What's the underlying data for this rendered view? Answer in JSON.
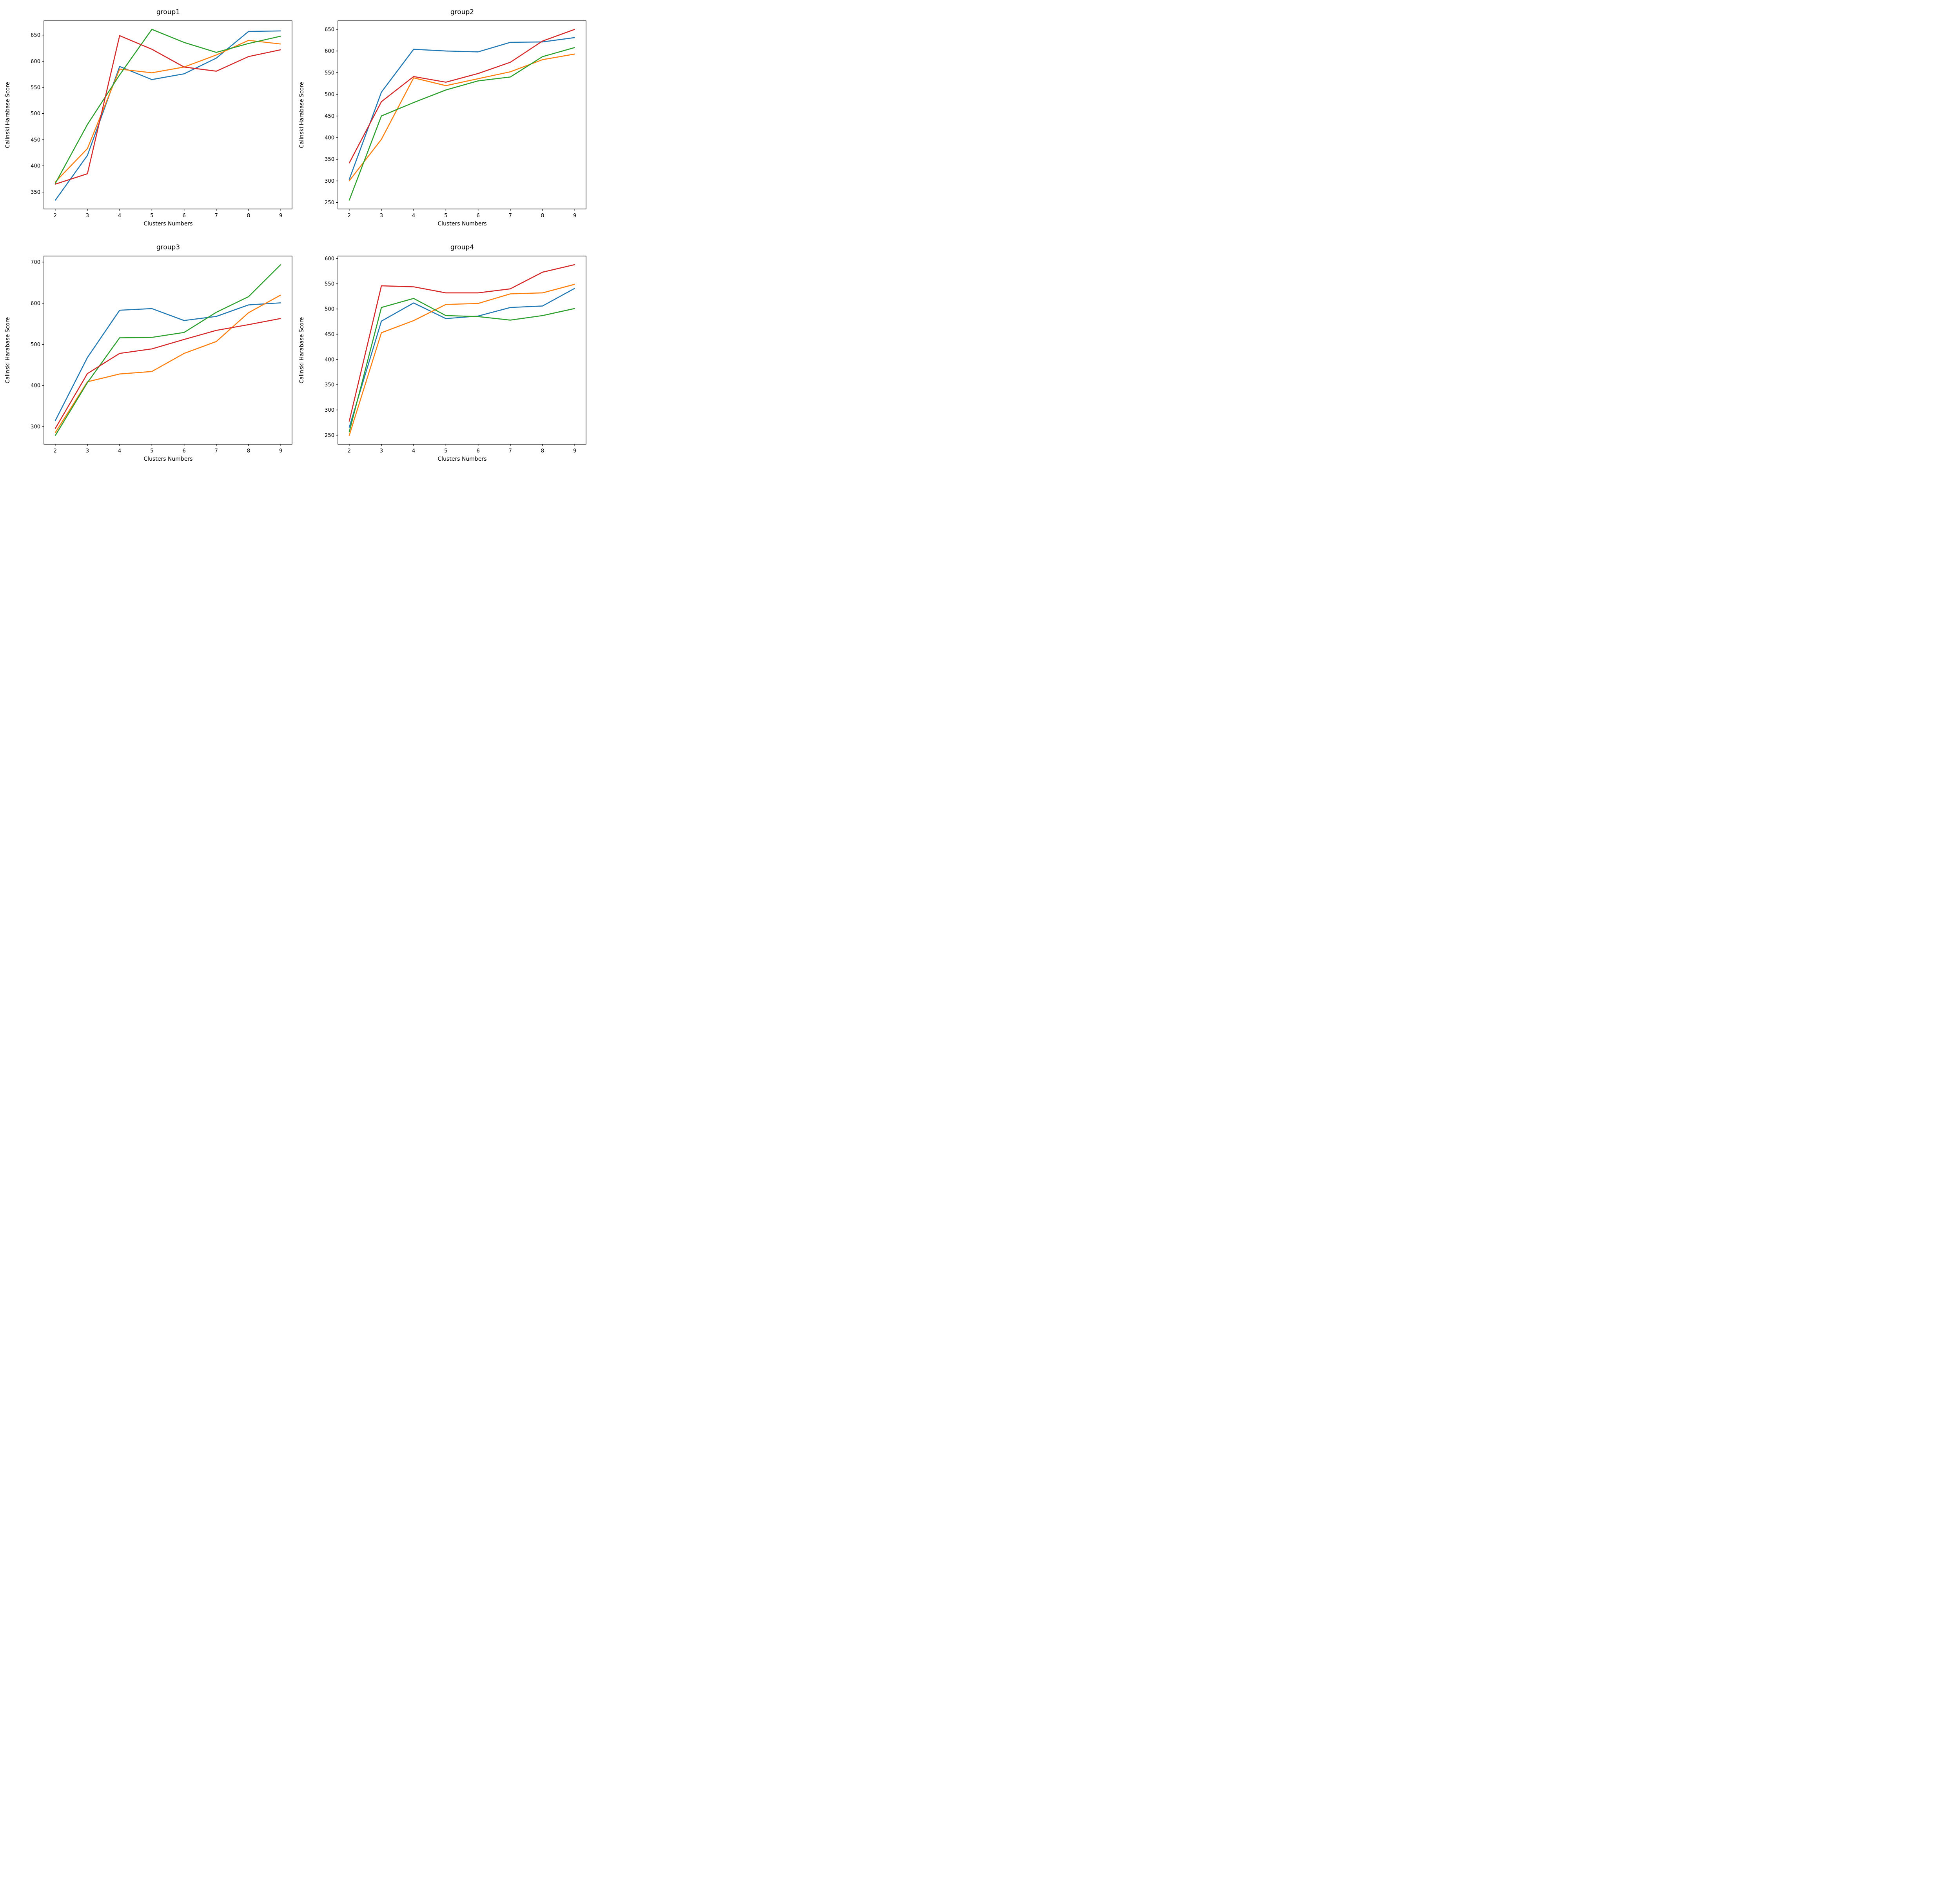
{
  "figure": {
    "background": "#ffffff",
    "axis_color": "#000000",
    "line_width": 2.6
  },
  "chart_data": [
    {
      "id": "group1",
      "type": "line",
      "title": "group1",
      "xlabel": "Clusters Numbers",
      "ylabel": "Calinski Harabase Score",
      "x": [
        2,
        3,
        4,
        5,
        6,
        7,
        8,
        9
      ],
      "xticks": [
        2,
        3,
        4,
        5,
        6,
        7,
        8,
        9
      ],
      "yticks": [
        350,
        400,
        450,
        500,
        550,
        600,
        650
      ],
      "xlim": [
        1.65,
        9.35
      ],
      "ylim": [
        317.6,
        677.4
      ],
      "grid": false,
      "legend": "none",
      "series": [
        {
          "name": "series-blue",
          "color": "#1f77b4",
          "values": [
            334,
            420,
            590,
            565,
            576,
            606,
            657,
            658
          ]
        },
        {
          "name": "series-orange",
          "color": "#ff7f0e",
          "values": [
            369,
            433,
            585,
            578,
            589,
            612,
            640,
            633
          ]
        },
        {
          "name": "series-green",
          "color": "#2ca02c",
          "values": [
            366,
            479,
            574,
            661,
            636,
            617,
            634,
            648
          ]
        },
        {
          "name": "series-red",
          "color": "#d62728",
          "values": [
            365,
            385,
            649,
            623,
            589,
            581,
            609,
            622
          ]
        }
      ]
    },
    {
      "id": "group2",
      "type": "line",
      "title": "group2",
      "xlabel": "Clusters Numbers",
      "ylabel": "Calinski Harabase Score",
      "x": [
        2,
        3,
        4,
        5,
        6,
        7,
        8,
        9
      ],
      "xticks": [
        2,
        3,
        4,
        5,
        6,
        7,
        8,
        9
      ],
      "yticks": [
        250,
        300,
        350,
        400,
        450,
        500,
        550,
        600,
        650
      ],
      "xlim": [
        1.65,
        9.35
      ],
      "ylim": [
        235.2,
        669.8
      ],
      "grid": false,
      "legend": "none",
      "series": [
        {
          "name": "series-blue",
          "color": "#1f77b4",
          "values": [
            303,
            505,
            604,
            600,
            598,
            620,
            621,
            631
          ]
        },
        {
          "name": "series-orange",
          "color": "#ff7f0e",
          "values": [
            300,
            396,
            538,
            520,
            536,
            552,
            580,
            593
          ]
        },
        {
          "name": "series-green",
          "color": "#2ca02c",
          "values": [
            255,
            450,
            481,
            510,
            531,
            540,
            587,
            608
          ]
        },
        {
          "name": "series-red",
          "color": "#d62728",
          "values": [
            341,
            483,
            541,
            528,
            548,
            574,
            623,
            650
          ]
        }
      ]
    },
    {
      "id": "group3",
      "type": "line",
      "title": "group3",
      "xlabel": "Clusters Numbers",
      "ylabel": "Calinski Harabase Score",
      "x": [
        2,
        3,
        4,
        5,
        6,
        7,
        8,
        9
      ],
      "xticks": [
        2,
        3,
        4,
        5,
        6,
        7,
        8,
        9
      ],
      "yticks": [
        300,
        400,
        500,
        600,
        700
      ],
      "xlim": [
        1.65,
        9.35
      ],
      "ylim": [
        257.2,
        714.8
      ],
      "grid": false,
      "legend": "none",
      "series": [
        {
          "name": "series-blue",
          "color": "#1f77b4",
          "values": [
            314,
            468,
            583,
            587,
            558,
            568,
            596,
            601
          ]
        },
        {
          "name": "series-orange",
          "color": "#ff7f0e",
          "values": [
            285,
            409,
            428,
            434,
            478,
            507,
            577,
            620
          ]
        },
        {
          "name": "series-green",
          "color": "#2ca02c",
          "values": [
            278,
            407,
            516,
            517,
            529,
            578,
            616,
            694
          ]
        },
        {
          "name": "series-red",
          "color": "#d62728",
          "values": [
            295,
            429,
            478,
            489,
            512,
            534,
            548,
            563
          ]
        }
      ]
    },
    {
      "id": "group4",
      "type": "line",
      "title": "group4",
      "xlabel": "Clusters Numbers",
      "ylabel": "Calinski Harabase Score",
      "x": [
        2,
        3,
        4,
        5,
        6,
        7,
        8,
        9
      ],
      "xticks": [
        2,
        3,
        4,
        5,
        6,
        7,
        8,
        9
      ],
      "yticks": [
        250,
        300,
        350,
        400,
        450,
        500,
        550,
        600
      ],
      "xlim": [
        1.65,
        9.35
      ],
      "ylim": [
        232.0,
        605.0
      ],
      "grid": false,
      "legend": "none",
      "series": [
        {
          "name": "series-blue",
          "color": "#1f77b4",
          "values": [
            265,
            476,
            512,
            481,
            486,
            503,
            506,
            541
          ]
        },
        {
          "name": "series-orange",
          "color": "#ff7f0e",
          "values": [
            249,
            453,
            477,
            509,
            511,
            530,
            532,
            549
          ]
        },
        {
          "name": "series-green",
          "color": "#2ca02c",
          "values": [
            256,
            503,
            521,
            487,
            485,
            478,
            487,
            501
          ]
        },
        {
          "name": "series-red",
          "color": "#d62728",
          "values": [
            277,
            546,
            544,
            532,
            532,
            540,
            573,
            588
          ]
        }
      ]
    }
  ]
}
